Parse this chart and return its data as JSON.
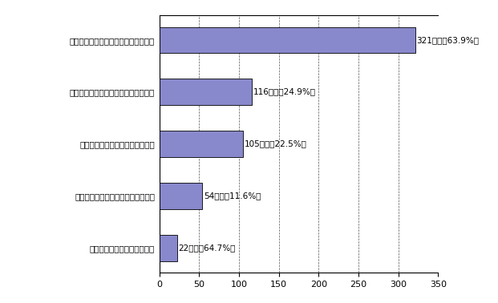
{
  "categories": [
    "その他の方法を採用している",
    "既存の事務組織のみで対応している",
    "学部ごとの委員会等を設けている",
    "「大学教育センター等」を設けている",
    "全学レベルでの委員会等を設けている"
  ],
  "values": [
    22,
    54,
    105,
    116,
    321
  ],
  "labels": [
    "22大学（64.7%）",
    "54大学（11.6%）",
    "105大学（22.5%）",
    "116大学（24.9%）",
    "321大学（63.9%）"
  ],
  "bar_color": "#8888cc",
  "bar_edgecolor": "#000000",
  "xlim": [
    0,
    350
  ],
  "xticks": [
    0,
    50,
    100,
    150,
    200,
    250,
    300,
    350
  ],
  "background_color": "#ffffff",
  "grid_color": "#555555",
  "label_fontsize": 7.5,
  "tick_fontsize": 8,
  "bar_height": 0.5
}
